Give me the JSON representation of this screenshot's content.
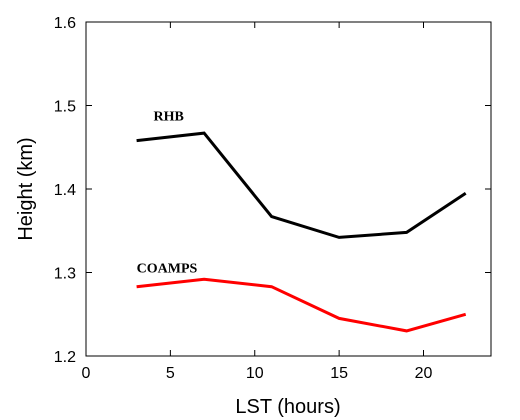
{
  "chart_data": {
    "type": "line",
    "xlabel": "LST (hours)",
    "ylabel": "Height (km)",
    "xlim": [
      0,
      24
    ],
    "ylim": [
      1.2,
      1.6
    ],
    "xticks": [
      0,
      5,
      10,
      15,
      20
    ],
    "yticks": [
      1.2,
      1.3,
      1.4,
      1.5,
      1.6
    ],
    "xtick_labels": [
      "0",
      "5",
      "10",
      "15",
      "20"
    ],
    "ytick_labels": [
      "1.2",
      "1.3",
      "1.4",
      "1.5",
      "1.6"
    ],
    "grid": false,
    "series": [
      {
        "name": "RHB",
        "color": "#000000",
        "x": [
          3,
          7,
          11,
          15,
          19,
          22.5
        ],
        "y": [
          1.458,
          1.467,
          1.367,
          1.342,
          1.348,
          1.395
        ]
      },
      {
        "name": "COAMPS",
        "color": "#ff0000",
        "x": [
          3,
          7,
          11,
          15,
          19,
          22.5
        ],
        "y": [
          1.283,
          1.292,
          1.283,
          1.245,
          1.23,
          1.25
        ]
      }
    ],
    "annotations": [
      {
        "text": "RHB",
        "x": 4,
        "y": 1.482
      },
      {
        "text": "COAMPS",
        "x": 3,
        "y": 1.3
      }
    ]
  }
}
